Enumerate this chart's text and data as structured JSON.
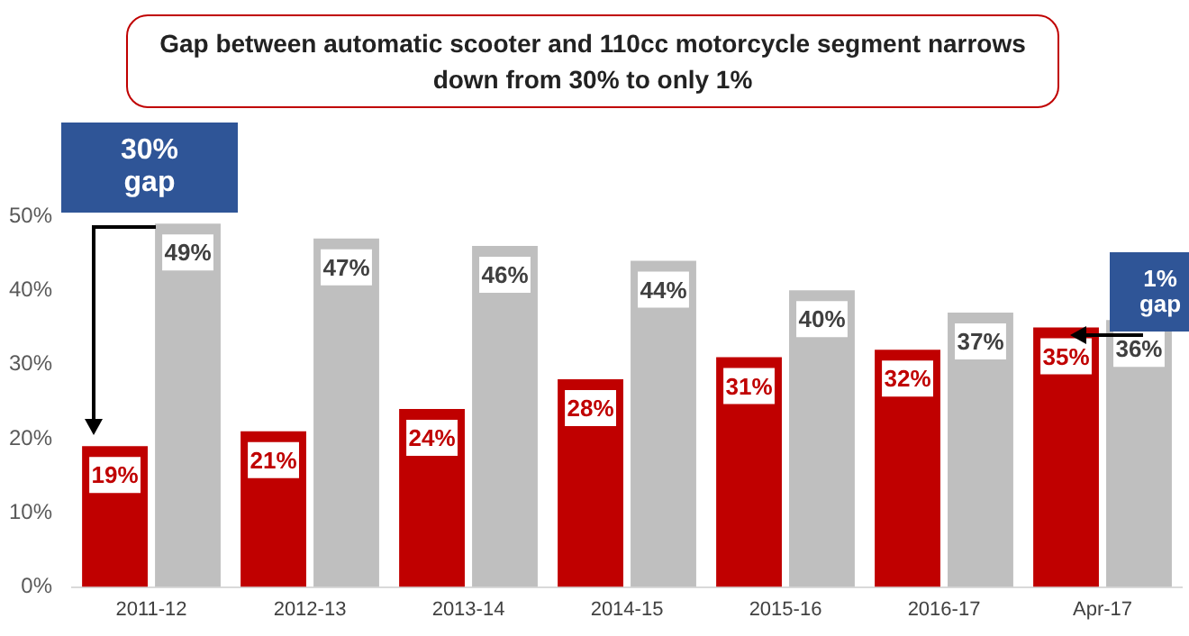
{
  "chart_data": {
    "type": "bar",
    "title": "Gap between automatic scooter and 110cc motorcycle segment narrows down from 30% to only 1%",
    "categories": [
      "2011-12",
      "2012-13",
      "2013-14",
      "2014-15",
      "2015-16",
      "2016-17",
      "Apr-17"
    ],
    "series": [
      {
        "color": "#c00000",
        "values": [
          19,
          21,
          24,
          28,
          31,
          32,
          35
        ],
        "value_labels": [
          "19%",
          "21%",
          "24%",
          "28%",
          "31%",
          "32%",
          "35%"
        ]
      },
      {
        "color": "#bfbfbf",
        "values": [
          49,
          47,
          46,
          44,
          40,
          37,
          36
        ],
        "value_labels": [
          "49%",
          "47%",
          "46%",
          "44%",
          "40%",
          "37%",
          "36%"
        ]
      }
    ],
    "ylim": [
      0,
      50
    ],
    "yticks": [
      {
        "value": 0,
        "label": "0%"
      },
      {
        "value": 10,
        "label": "10%"
      },
      {
        "value": 20,
        "label": "20%"
      },
      {
        "value": 30,
        "label": "30%"
      },
      {
        "value": 40,
        "label": "40%"
      },
      {
        "value": 50,
        "label": "50%"
      }
    ],
    "grid": false,
    "legend": false,
    "annotations": [
      "30%\ngap",
      "1%\ngap"
    ]
  }
}
